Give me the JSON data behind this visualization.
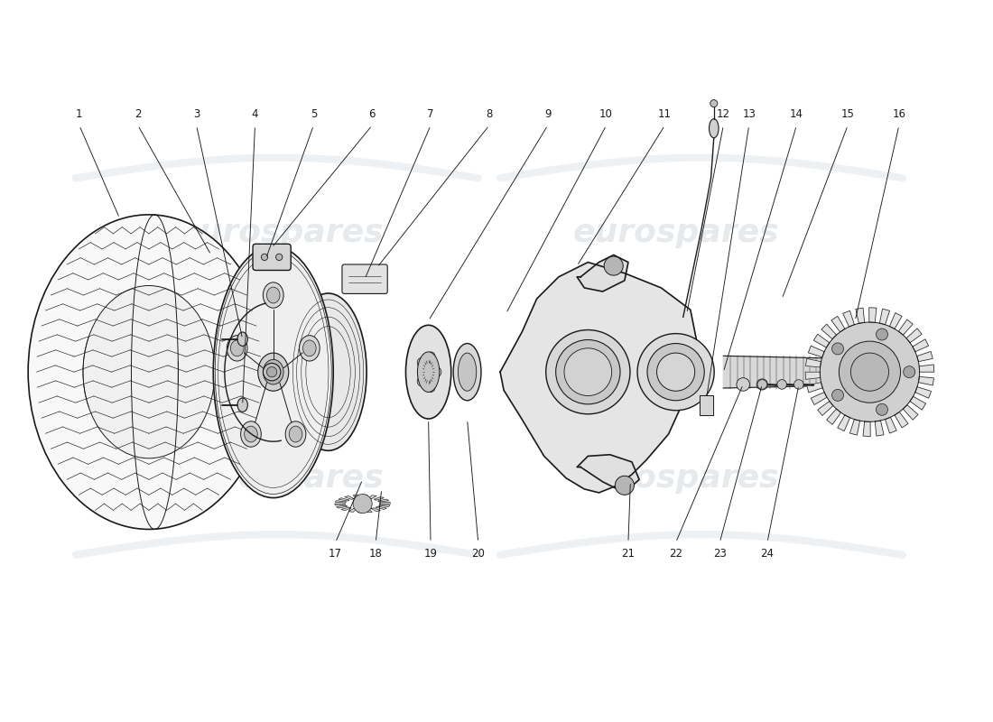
{
  "background_color": "#ffffff",
  "watermark_text": "eurospares",
  "watermark_color": "#b8c4cc",
  "watermark_alpha": 0.35,
  "line_color": "#1a1a1a",
  "label_x_top": [
    1.05,
    1.85,
    2.65,
    3.45,
    4.25,
    5.05,
    5.85,
    6.65,
    7.45,
    8.25,
    9.05,
    9.85,
    10.2,
    10.85,
    11.55,
    12.25
  ],
  "label_x_bot": [
    4.55,
    5.1,
    5.85,
    6.5,
    8.55,
    9.2,
    9.8,
    10.45
  ],
  "label_nums_top": [
    1,
    2,
    3,
    4,
    5,
    6,
    7,
    8,
    9,
    10,
    11,
    12,
    13,
    14,
    15,
    16
  ],
  "label_nums_bot": [
    17,
    18,
    19,
    20,
    21,
    22,
    23,
    24
  ]
}
